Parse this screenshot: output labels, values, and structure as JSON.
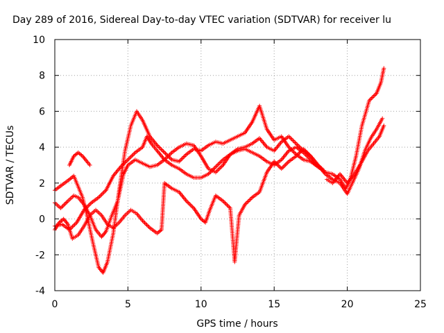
{
  "chart_data": {
    "type": "scatter",
    "title": "Day 289 of 2016, Sidereal Day-to-day VTEC variation (SDTVAR) for receiver lu",
    "xlabel": "GPS time / hours",
    "ylabel": "SDTVAR / TECUs",
    "xlim": [
      0,
      25
    ],
    "ylim": [
      -4,
      10
    ],
    "xticks": [
      "0",
      "5",
      "10",
      "15",
      "20",
      "25"
    ],
    "yticks": [
      "-4",
      "-2",
      "0",
      "2",
      "4",
      "6",
      "8",
      "10"
    ],
    "grid": true,
    "marker": "+",
    "color": "#ff0000",
    "series": [
      {
        "points": [
          [
            0.0,
            1.6
          ],
          [
            0.5,
            1.9
          ],
          [
            1.0,
            2.2
          ],
          [
            1.3,
            2.4
          ],
          [
            1.5,
            2.0
          ],
          [
            1.9,
            1.2
          ],
          [
            2.2,
            0.2
          ],
          [
            2.6,
            -1.3
          ],
          [
            3.0,
            -2.7
          ],
          [
            3.3,
            -3.0
          ],
          [
            3.6,
            -2.4
          ],
          [
            4.0,
            -0.8
          ],
          [
            4.4,
            1.6
          ],
          [
            4.8,
            3.8
          ],
          [
            5.2,
            5.2
          ],
          [
            5.6,
            6.0
          ],
          [
            6.0,
            5.5
          ],
          [
            6.5,
            4.6
          ],
          [
            7.0,
            4.1
          ],
          [
            7.5,
            3.7
          ],
          [
            8.0,
            3.3
          ],
          [
            8.5,
            3.2
          ],
          [
            9.0,
            3.6
          ],
          [
            9.5,
            3.9
          ],
          [
            10.0,
            3.8
          ],
          [
            10.5,
            4.1
          ],
          [
            11.0,
            4.3
          ],
          [
            11.5,
            4.2
          ],
          [
            12.0,
            4.4
          ],
          [
            12.5,
            4.6
          ],
          [
            13.0,
            4.8
          ],
          [
            13.5,
            5.4
          ],
          [
            14.0,
            6.3
          ],
          [
            14.5,
            5.0
          ],
          [
            15.0,
            4.4
          ],
          [
            15.5,
            4.6
          ],
          [
            16.0,
            4.0
          ],
          [
            16.5,
            3.6
          ],
          [
            17.0,
            3.3
          ],
          [
            17.5,
            3.2
          ],
          [
            18.0,
            2.9
          ],
          [
            18.5,
            2.6
          ],
          [
            19.0,
            2.5
          ],
          [
            19.5,
            2.2
          ],
          [
            19.9,
            1.7
          ],
          [
            20.2,
            2.2
          ],
          [
            20.6,
            3.5
          ],
          [
            21.0,
            5.2
          ],
          [
            21.5,
            6.6
          ],
          [
            22.0,
            7.0
          ],
          [
            22.3,
            7.6
          ],
          [
            22.5,
            8.4
          ]
        ]
      },
      {
        "points": [
          [
            0.0,
            0.9
          ],
          [
            0.4,
            0.6
          ],
          [
            0.9,
            1.0
          ],
          [
            1.3,
            1.3
          ],
          [
            1.6,
            1.2
          ],
          [
            2.0,
            0.8
          ],
          [
            2.4,
            0.2
          ],
          [
            2.8,
            -0.6
          ],
          [
            3.2,
            -1.0
          ],
          [
            3.5,
            -0.7
          ],
          [
            3.9,
            0.2
          ],
          [
            4.3,
            1.0
          ],
          [
            4.7,
            2.5
          ],
          [
            5.0,
            3.0
          ],
          [
            5.5,
            3.3
          ],
          [
            6.0,
            3.1
          ],
          [
            6.5,
            2.9
          ],
          [
            7.0,
            3.0
          ],
          [
            7.5,
            3.3
          ],
          [
            8.0,
            3.7
          ],
          [
            8.5,
            4.0
          ],
          [
            9.0,
            4.2
          ],
          [
            9.5,
            4.1
          ],
          [
            10.0,
            3.5
          ],
          [
            10.5,
            2.8
          ],
          [
            11.0,
            2.6
          ],
          [
            11.5,
            3.0
          ],
          [
            12.0,
            3.6
          ],
          [
            12.5,
            3.9
          ],
          [
            13.0,
            4.0
          ],
          [
            13.5,
            4.2
          ],
          [
            14.0,
            4.5
          ],
          [
            14.5,
            4.0
          ],
          [
            15.0,
            3.8
          ],
          [
            15.5,
            4.3
          ],
          [
            16.0,
            4.6
          ],
          [
            16.5,
            4.2
          ],
          [
            17.0,
            3.8
          ],
          [
            17.5,
            3.5
          ],
          [
            18.0,
            3.0
          ],
          [
            18.5,
            2.5
          ],
          [
            19.0,
            2.2
          ],
          [
            19.5,
            2.0
          ],
          [
            20.0,
            1.4
          ],
          [
            20.4,
            2.1
          ],
          [
            20.8,
            2.8
          ],
          [
            21.2,
            3.8
          ],
          [
            21.6,
            4.5
          ],
          [
            22.0,
            5.0
          ],
          [
            22.4,
            5.6
          ]
        ]
      },
      {
        "points": [
          [
            0.0,
            -0.6
          ],
          [
            0.3,
            -0.2
          ],
          [
            0.6,
            0.0
          ],
          [
            0.9,
            -0.3
          ],
          [
            1.2,
            -1.1
          ],
          [
            1.6,
            -0.9
          ],
          [
            2.0,
            -0.4
          ],
          [
            2.4,
            0.2
          ],
          [
            2.8,
            0.5
          ],
          [
            3.2,
            0.2
          ],
          [
            3.6,
            -0.3
          ],
          [
            4.0,
            -0.5
          ],
          [
            4.4,
            -0.2
          ],
          [
            4.8,
            0.2
          ],
          [
            5.2,
            0.5
          ],
          [
            5.6,
            0.3
          ],
          [
            6.0,
            -0.1
          ],
          [
            6.5,
            -0.5
          ],
          [
            7.0,
            -0.8
          ],
          [
            7.3,
            -0.6
          ],
          [
            7.5,
            2.0
          ],
          [
            8.0,
            1.7
          ],
          [
            8.5,
            1.5
          ],
          [
            9.0,
            1.0
          ],
          [
            9.5,
            0.6
          ],
          [
            10.0,
            0.0
          ],
          [
            10.3,
            -0.2
          ],
          [
            10.6,
            0.5
          ],
          [
            11.0,
            1.3
          ],
          [
            11.5,
            1.0
          ],
          [
            12.0,
            0.6
          ],
          [
            12.3,
            -2.4
          ],
          [
            12.6,
            0.2
          ],
          [
            13.0,
            0.8
          ],
          [
            13.5,
            1.2
          ],
          [
            14.0,
            1.5
          ],
          [
            14.5,
            2.6
          ],
          [
            15.0,
            3.2
          ],
          [
            15.5,
            2.8
          ],
          [
            16.0,
            3.2
          ],
          [
            16.5,
            3.5
          ],
          [
            17.0,
            3.9
          ],
          [
            17.5,
            3.5
          ],
          [
            18.0,
            3.0
          ],
          [
            18.4,
            2.7
          ]
        ]
      },
      {
        "points": [
          [
            0.0,
            -0.4
          ],
          [
            0.5,
            -0.3
          ],
          [
            1.0,
            -0.6
          ],
          [
            1.5,
            -0.2
          ],
          [
            2.0,
            0.5
          ],
          [
            2.5,
            0.9
          ],
          [
            3.0,
            1.2
          ],
          [
            3.5,
            1.6
          ],
          [
            4.0,
            2.4
          ],
          [
            4.5,
            2.9
          ],
          [
            5.0,
            3.3
          ],
          [
            5.5,
            3.7
          ],
          [
            6.0,
            4.0
          ],
          [
            6.3,
            4.6
          ],
          [
            6.6,
            4.2
          ],
          [
            7.0,
            3.8
          ],
          [
            7.5,
            3.3
          ],
          [
            8.0,
            3.0
          ],
          [
            8.5,
            2.8
          ],
          [
            9.0,
            2.5
          ],
          [
            9.5,
            2.3
          ],
          [
            10.0,
            2.3
          ],
          [
            10.5,
            2.5
          ],
          [
            11.0,
            2.9
          ],
          [
            11.5,
            3.3
          ],
          [
            12.0,
            3.6
          ],
          [
            12.5,
            3.8
          ],
          [
            13.0,
            3.9
          ],
          [
            13.5,
            3.7
          ],
          [
            14.0,
            3.5
          ],
          [
            14.5,
            3.2
          ],
          [
            15.0,
            3.0
          ],
          [
            15.5,
            3.3
          ],
          [
            16.0,
            3.8
          ],
          [
            16.5,
            4.0
          ],
          [
            17.0,
            3.7
          ],
          [
            17.5,
            3.3
          ],
          [
            18.0,
            2.9
          ]
        ]
      },
      {
        "points": [
          [
            1.0,
            3.0
          ],
          [
            1.3,
            3.5
          ],
          [
            1.6,
            3.7
          ],
          [
            1.9,
            3.5
          ],
          [
            2.2,
            3.2
          ],
          [
            2.4,
            3.0
          ]
        ]
      },
      {
        "points": [
          [
            18.6,
            2.2
          ],
          [
            19.0,
            2.0
          ],
          [
            19.5,
            2.5
          ],
          [
            20.0,
            2.0
          ],
          [
            20.5,
            2.5
          ],
          [
            21.0,
            3.2
          ],
          [
            21.4,
            3.8
          ],
          [
            21.8,
            4.2
          ],
          [
            22.2,
            4.6
          ],
          [
            22.5,
            5.2
          ]
        ]
      }
    ]
  }
}
